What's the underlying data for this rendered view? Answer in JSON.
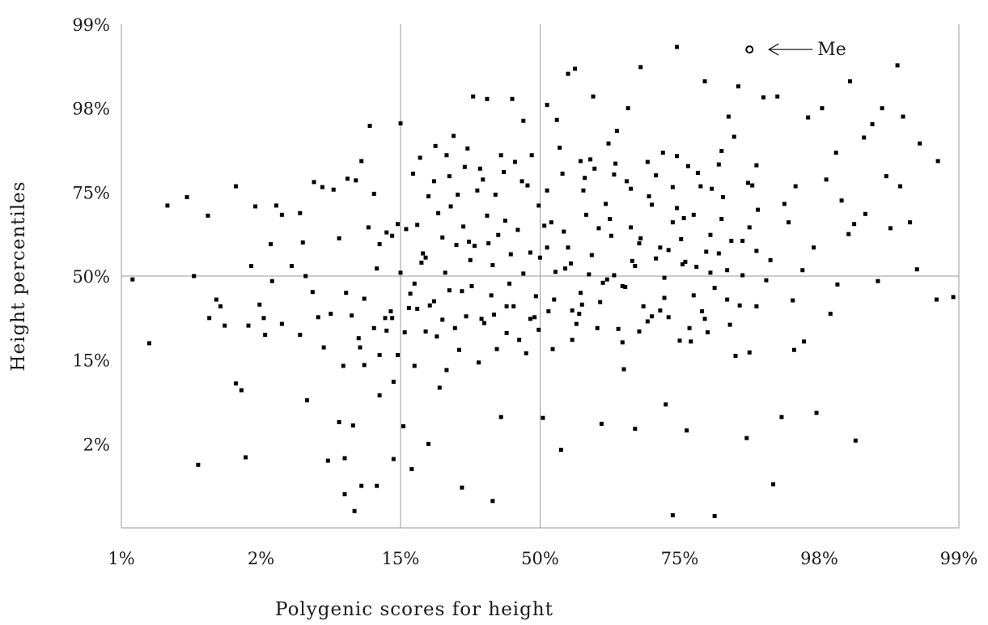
{
  "chart_data": {
    "type": "scatter",
    "title": "",
    "xlabel": "Polygenic scores for height",
    "ylabel": "Height percentiles",
    "x_ticks": [
      "1%",
      "2%",
      "15%",
      "50%",
      "75%",
      "98%",
      "99%"
    ],
    "y_ticks": [
      "2%",
      "15%",
      "50%",
      "75%",
      "98%",
      "99%"
    ],
    "xlim": [
      0,
      6
    ],
    "ylim": [
      -1,
      5
    ],
    "reference_lines": {
      "x": [
        2,
        3
      ],
      "y": [
        2
      ]
    },
    "grid": false,
    "highlight": {
      "label": "Me",
      "x": 4.5,
      "y": 4.7
    },
    "colors": {
      "points": "#000000",
      "lines": "#9a9a9a",
      "text": "#1a1a1a"
    },
    "points": [
      [
        0.08,
        1.96
      ],
      [
        0.2,
        1.2
      ],
      [
        0.33,
        2.84
      ],
      [
        0.47,
        2.94
      ],
      [
        0.52,
        2.0
      ],
      [
        0.55,
        -0.25
      ],
      [
        0.62,
        2.72
      ],
      [
        0.68,
        1.72
      ],
      [
        0.63,
        1.5
      ],
      [
        0.71,
        1.64
      ],
      [
        0.74,
        1.41
      ],
      [
        0.82,
        0.72
      ],
      [
        0.86,
        0.64
      ],
      [
        0.82,
        3.07
      ],
      [
        0.89,
        -0.16
      ],
      [
        0.93,
        2.12
      ],
      [
        0.96,
        2.83
      ],
      [
        0.91,
        1.41
      ],
      [
        0.99,
        1.66
      ],
      [
        1.02,
        1.5
      ],
      [
        1.07,
        2.38
      ],
      [
        1.11,
        2.84
      ],
      [
        1.03,
        1.3
      ],
      [
        1.08,
        1.94
      ],
      [
        1.15,
        1.43
      ],
      [
        1.22,
        2.12
      ],
      [
        1.28,
        1.3
      ],
      [
        1.33,
        0.52
      ],
      [
        1.15,
        2.73
      ],
      [
        1.28,
        2.75
      ],
      [
        1.3,
        2.4
      ],
      [
        1.38,
        3.12
      ],
      [
        1.44,
        3.06
      ],
      [
        1.32,
        2.0
      ],
      [
        1.37,
        1.81
      ],
      [
        1.41,
        1.51
      ],
      [
        1.45,
        1.15
      ],
      [
        1.52,
        3.03
      ],
      [
        1.56,
        2.45
      ],
      [
        1.61,
        1.8
      ],
      [
        1.68,
        3.14
      ],
      [
        1.65,
        1.53
      ],
      [
        1.7,
        1.26
      ],
      [
        1.77,
        2.58
      ],
      [
        1.83,
        2.09
      ],
      [
        1.93,
        1.58
      ],
      [
        1.95,
        -0.18
      ],
      [
        1.6,
        -0.17
      ],
      [
        1.72,
        -0.5
      ],
      [
        1.89,
        1.5
      ],
      [
        1.9,
        2.52
      ],
      [
        1.85,
        0.58
      ],
      [
        1.9,
        1.35
      ],
      [
        1.95,
        0.74
      ],
      [
        1.5,
        1.55
      ],
      [
        1.59,
        0.93
      ],
      [
        1.66,
        0.22
      ],
      [
        1.48,
        -0.2
      ],
      [
        1.6,
        -0.6
      ],
      [
        1.56,
        0.26
      ],
      [
        1.67,
        -0.8
      ],
      [
        1.71,
        1.15
      ],
      [
        1.72,
        3.37
      ],
      [
        1.78,
        3.79
      ],
      [
        1.74,
        0.94
      ],
      [
        1.81,
        1.38
      ],
      [
        1.85,
        2.38
      ],
      [
        1.83,
        -0.5
      ],
      [
        1.62,
        3.16
      ],
      [
        1.74,
        1.73
      ],
      [
        1.81,
        2.98
      ],
      [
        1.85,
        1.06
      ],
      [
        1.94,
        2.48
      ],
      [
        1.94,
        1.5
      ],
      [
        1.98,
        1.06
      ],
      [
        2.07,
        1.79
      ],
      [
        2.02,
        0.21
      ],
      [
        2.08,
        -0.3
      ],
      [
        2.12,
        1.61
      ],
      [
        2.18,
        2.22
      ],
      [
        2.24,
        1.7
      ],
      [
        2.2,
        -0.0
      ],
      [
        2.28,
        0.67
      ],
      [
        2.33,
        0.88
      ],
      [
        2.35,
        3.19
      ],
      [
        2.4,
        2.37
      ],
      [
        2.44,
        -0.52
      ],
      [
        2.48,
        3.52
      ],
      [
        2.52,
        4.14
      ],
      [
        2.58,
        1.49
      ],
      [
        2.62,
        4.11
      ],
      [
        2.66,
        -0.68
      ],
      [
        2.68,
        2.97
      ],
      [
        2.72,
        0.32
      ],
      [
        2.76,
        1.64
      ],
      [
        2.8,
        4.11
      ],
      [
        2.88,
        3.85
      ],
      [
        2.96,
        1.51
      ],
      [
        3.02,
        0.31
      ],
      [
        3.05,
        4.04
      ],
      [
        3.08,
        2.64
      ],
      [
        3.15,
        -0.07
      ],
      [
        3.2,
        4.41
      ],
      [
        3.23,
        1.24
      ],
      [
        3.29,
        1.8
      ],
      [
        3.32,
        3.17
      ],
      [
        3.38,
        4.14
      ],
      [
        3.44,
        0.24
      ],
      [
        3.5,
        2.68
      ],
      [
        3.55,
        3.73
      ],
      [
        3.61,
        1.87
      ],
      [
        3.63,
        4.0
      ],
      [
        3.68,
        0.18
      ],
      [
        3.72,
        2.45
      ],
      [
        3.8,
        1.52
      ],
      [
        3.88,
        3.47
      ],
      [
        3.9,
        0.47
      ],
      [
        3.95,
        -0.85
      ],
      [
        3.98,
        2.81
      ],
      [
        4.02,
        2.14
      ],
      [
        4.05,
        0.16
      ],
      [
        4.1,
        1.77
      ],
      [
        4.15,
        3.07
      ],
      [
        4.2,
        1.33
      ],
      [
        4.25,
        -0.86
      ],
      [
        4.3,
        2.68
      ],
      [
        4.35,
        3.9
      ],
      [
        4.4,
        1.05
      ],
      [
        4.45,
        2.42
      ],
      [
        4.48,
        0.07
      ],
      [
        4.52,
        3.08
      ],
      [
        4.55,
        1.64
      ],
      [
        4.6,
        4.13
      ],
      [
        4.65,
        2.19
      ],
      [
        4.7,
        4.14
      ],
      [
        4.73,
        0.32
      ],
      [
        4.78,
        2.64
      ],
      [
        4.81,
        1.71
      ],
      [
        4.83,
        3.07
      ],
      [
        4.89,
        1.22
      ],
      [
        4.92,
        3.89
      ],
      [
        4.96,
        2.34
      ],
      [
        5.02,
        4.0
      ],
      [
        5.08,
        1.55
      ],
      [
        5.12,
        3.47
      ],
      [
        5.16,
        2.9
      ],
      [
        5.22,
        4.32
      ],
      [
        5.25,
        2.62
      ],
      [
        5.32,
        3.65
      ],
      [
        5.38,
        3.81
      ],
      [
        5.45,
        4.0
      ],
      [
        5.48,
        3.19
      ],
      [
        5.51,
        2.57
      ],
      [
        5.56,
        4.51
      ],
      [
        5.6,
        3.9
      ],
      [
        5.65,
        2.64
      ],
      [
        5.72,
        3.58
      ],
      [
        5.84,
        1.72
      ],
      [
        5.96,
        1.75
      ],
      [
        5.85,
        3.37
      ],
      [
        5.7,
        2.08
      ],
      [
        5.58,
        3.07
      ],
      [
        5.42,
        1.94
      ],
      [
        5.33,
        2.74
      ],
      [
        5.26,
        0.04
      ],
      [
        5.21,
        2.5
      ],
      [
        5.13,
        1.9
      ],
      [
        5.05,
        3.15
      ],
      [
        4.98,
        0.37
      ],
      [
        4.88,
        2.07
      ],
      [
        4.82,
        1.12
      ],
      [
        4.75,
        2.86
      ],
      [
        4.67,
        -0.48
      ],
      [
        4.62,
        1.95
      ],
      [
        4.55,
        3.32
      ],
      [
        4.5,
        2.58
      ],
      [
        4.42,
        4.26
      ],
      [
        4.36,
        1.42
      ],
      [
        4.3,
        3.49
      ],
      [
        4.22,
        2.04
      ],
      [
        4.18,
        4.32
      ],
      [
        4.08,
        1.22
      ],
      [
        4.03,
        2.69
      ],
      [
        3.98,
        4.73
      ],
      [
        3.92,
        2.31
      ],
      [
        3.86,
        1.59
      ],
      [
        3.78,
        2.95
      ],
      [
        3.72,
        4.49
      ],
      [
        3.66,
        2.18
      ],
      [
        3.6,
        0.89
      ],
      [
        3.54,
        3.34
      ],
      [
        3.48,
        1.96
      ],
      [
        3.42,
        2.57
      ],
      [
        3.36,
        3.39
      ],
      [
        3.3,
        1.66
      ],
      [
        3.25,
        4.47
      ],
      [
        3.18,
        2.09
      ],
      [
        3.12,
        3.86
      ],
      [
        3.06,
        1.58
      ],
      [
        3.0,
        2.22
      ],
      [
        2.94,
        3.44
      ],
      [
        2.9,
        1.08
      ],
      [
        2.84,
        2.55
      ],
      [
        2.78,
        1.91
      ],
      [
        2.72,
        3.44
      ],
      [
        2.66,
        2.13
      ],
      [
        2.6,
        1.44
      ],
      [
        2.55,
        3.02
      ],
      [
        2.49,
        2.41
      ],
      [
        2.44,
        1.82
      ],
      [
        2.38,
        3.67
      ],
      [
        2.32,
        2.04
      ],
      [
        2.26,
        1.28
      ],
      [
        2.2,
        2.95
      ],
      [
        2.14,
        3.41
      ],
      [
        2.1,
        1.91
      ],
      [
        2.04,
        2.56
      ],
      [
        2.0,
        3.82
      ],
      [
        2.1,
        0.93
      ],
      [
        2.16,
        2.27
      ],
      [
        2.25,
        3.55
      ],
      [
        2.3,
        1.48
      ],
      [
        2.36,
        2.83
      ],
      [
        2.42,
        1.12
      ],
      [
        2.46,
        3.3
      ],
      [
        2.5,
        2.19
      ],
      [
        2.56,
        0.97
      ],
      [
        2.62,
        2.72
      ],
      [
        2.67,
        1.54
      ],
      [
        2.74,
        3.24
      ],
      [
        2.79,
        2.26
      ],
      [
        2.85,
        1.24
      ],
      [
        2.91,
        3.08
      ],
      [
        2.97,
        1.76
      ],
      [
        3.03,
        2.6
      ],
      [
        3.09,
        1.13
      ],
      [
        3.14,
        3.53
      ],
      [
        3.2,
        2.34
      ],
      [
        3.26,
        1.43
      ],
      [
        3.31,
        3.02
      ],
      [
        3.37,
        2.25
      ],
      [
        3.43,
        1.69
      ],
      [
        3.49,
        3.58
      ],
      [
        3.53,
        2.01
      ],
      [
        3.59,
        1.21
      ],
      [
        3.65,
        3.04
      ],
      [
        3.71,
        2.39
      ],
      [
        3.77,
        1.46
      ],
      [
        3.83,
        3.2
      ],
      [
        3.89,
        1.98
      ],
      [
        3.95,
        2.64
      ],
      [
        4.0,
        1.23
      ],
      [
        4.06,
        3.31
      ],
      [
        4.12,
        2.11
      ],
      [
        4.18,
        1.49
      ],
      [
        4.23,
        3.04
      ],
      [
        4.28,
        2.27
      ],
      [
        4.34,
        1.72
      ],
      [
        4.39,
        3.66
      ],
      [
        4.45,
        2.01
      ],
      [
        4.5,
        1.09
      ],
      [
        4.56,
        2.79
      ],
      [
        2.0,
        2.04
      ],
      [
        2.06,
        1.62
      ],
      [
        2.12,
        2.61
      ],
      [
        2.18,
        1.34
      ],
      [
        2.24,
        3.13
      ],
      [
        2.3,
        2.46
      ],
      [
        2.35,
        1.83
      ],
      [
        2.41,
        2.97
      ],
      [
        2.47,
        1.52
      ],
      [
        2.53,
        2.36
      ],
      [
        2.59,
        3.15
      ],
      [
        2.65,
        1.77
      ],
      [
        2.7,
        2.49
      ],
      [
        2.76,
        1.32
      ],
      [
        2.82,
        3.36
      ],
      [
        2.88,
        2.03
      ],
      [
        2.93,
        1.49
      ],
      [
        2.99,
        2.84
      ],
      [
        3.05,
        2.34
      ],
      [
        3.1,
        1.72
      ],
      [
        3.16,
        3.22
      ],
      [
        3.22,
        2.15
      ],
      [
        3.28,
        1.55
      ],
      [
        3.33,
        2.73
      ],
      [
        3.39,
        3.28
      ],
      [
        3.45,
        1.92
      ],
      [
        3.51,
        2.48
      ],
      [
        3.56,
        1.37
      ],
      [
        3.62,
        3.13
      ],
      [
        3.68,
        2.12
      ],
      [
        3.74,
        1.64
      ],
      [
        3.8,
        2.85
      ],
      [
        3.86,
        2.34
      ],
      [
        3.92,
        1.51
      ],
      [
        3.98,
        3.43
      ],
      [
        4.04,
        2.17
      ],
      [
        4.1,
        2.73
      ],
      [
        4.16,
        1.58
      ],
      [
        4.22,
        2.49
      ],
      [
        4.28,
        3.33
      ],
      [
        4.34,
        2.07
      ],
      [
        1.98,
        2.62
      ],
      [
        2.03,
        1.33
      ],
      [
        2.09,
        3.22
      ],
      [
        2.15,
        2.16
      ],
      [
        2.21,
        1.65
      ],
      [
        2.27,
        2.75
      ],
      [
        2.33,
        3.44
      ],
      [
        2.39,
        1.38
      ],
      [
        2.45,
        2.59
      ],
      [
        2.51,
        1.88
      ],
      [
        2.57,
        3.28
      ],
      [
        2.63,
        2.39
      ],
      [
        2.69,
        1.13
      ],
      [
        2.75,
        2.66
      ],
      [
        2.81,
        1.64
      ],
      [
        2.87,
        3.13
      ],
      [
        2.93,
        2.28
      ],
      [
        2.99,
        1.36
      ],
      [
        3.05,
        3.02
      ],
      [
        3.11,
        2.05
      ],
      [
        3.17,
        2.53
      ],
      [
        3.23,
        1.59
      ],
      [
        3.29,
        3.37
      ],
      [
        3.35,
        2.02
      ],
      [
        3.41,
        1.38
      ],
      [
        3.47,
        2.86
      ],
      [
        3.53,
        3.21
      ],
      [
        3.59,
        1.88
      ],
      [
        3.65,
        2.58
      ],
      [
        3.71,
        1.34
      ],
      [
        3.77,
        3.36
      ],
      [
        3.83,
        2.21
      ],
      [
        3.89,
        1.74
      ],
      [
        3.95,
        3.06
      ],
      [
        4.01,
        2.44
      ],
      [
        4.07,
        1.38
      ],
      [
        4.13,
        3.23
      ],
      [
        4.19,
        2.29
      ],
      [
        4.25,
        1.86
      ],
      [
        4.31,
        2.94
      ],
      [
        4.37,
        2.42
      ],
      [
        4.43,
        1.65
      ],
      [
        4.49,
        3.11
      ],
      [
        4.55,
        2.3
      ]
    ]
  }
}
